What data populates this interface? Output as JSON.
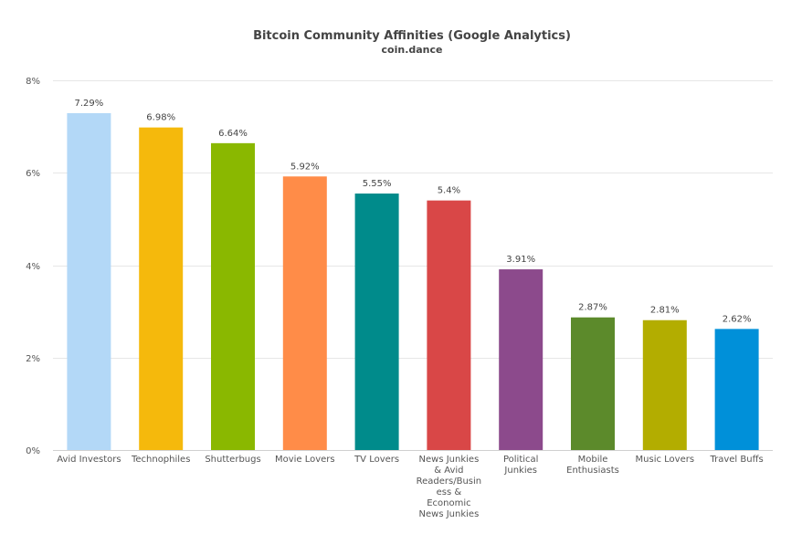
{
  "chart_data": {
    "type": "bar",
    "title": "Bitcoin Community Affinities (Google Analytics)",
    "subtitle": "coin.dance",
    "xlabel": "",
    "ylabel": "",
    "ylim": [
      0,
      8
    ],
    "yticks": [
      "0%",
      "2%",
      "4%",
      "6%",
      "8%"
    ],
    "ytick_values": [
      0,
      2,
      4,
      6,
      8
    ],
    "grid": true,
    "categories": [
      [
        "Avid Investors"
      ],
      [
        "Technophiles"
      ],
      [
        "Shutterbugs"
      ],
      [
        "Movie Lovers"
      ],
      [
        "TV Lovers"
      ],
      [
        "News Junkies",
        "& Avid",
        "Readers/Busin",
        "ess &",
        "Economic",
        "News Junkies"
      ],
      [
        "Political",
        "Junkies"
      ],
      [
        "Mobile",
        "Enthusiasts"
      ],
      [
        "Music Lovers"
      ],
      [
        "Travel Buffs"
      ]
    ],
    "values": [
      7.29,
      6.98,
      6.64,
      5.92,
      5.55,
      5.4,
      3.91,
      2.87,
      2.81,
      2.62
    ],
    "value_labels": [
      "7.29%",
      "6.98%",
      "6.64%",
      "5.92%",
      "5.55%",
      "5.4%",
      "3.91%",
      "2.87%",
      "2.81%",
      "2.62%"
    ],
    "colors": [
      "#b3d8f7",
      "#f5b90c",
      "#8ab800",
      "#ff8c48",
      "#008b8b",
      "#d94747",
      "#8c4a8c",
      "#5c8a2b",
      "#b3ad00",
      "#0090d9"
    ]
  }
}
